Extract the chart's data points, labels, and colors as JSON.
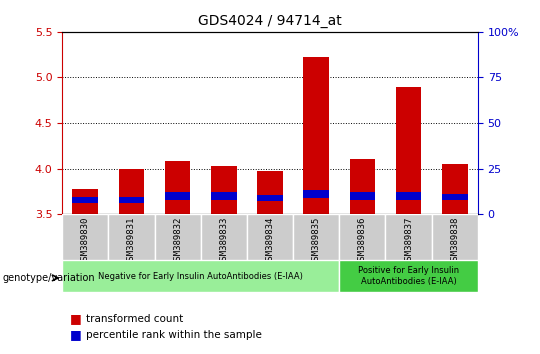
{
  "title": "GDS4024 / 94714_at",
  "samples": [
    "GSM389830",
    "GSM389831",
    "GSM389832",
    "GSM389833",
    "GSM389834",
    "GSM389835",
    "GSM389836",
    "GSM389837",
    "GSM389838"
  ],
  "transformed_counts": [
    3.78,
    4.0,
    4.08,
    4.03,
    3.97,
    5.22,
    4.1,
    4.9,
    4.05
  ],
  "percentile_values": [
    3.62,
    3.62,
    3.66,
    3.66,
    3.64,
    3.68,
    3.66,
    3.66,
    3.65
  ],
  "percentile_heights": [
    0.07,
    0.07,
    0.08,
    0.08,
    0.07,
    0.08,
    0.08,
    0.08,
    0.07
  ],
  "ymin": 3.5,
  "ymax": 5.5,
  "yticks": [
    3.5,
    4.0,
    4.5,
    5.0,
    5.5
  ],
  "right_yticks_vals": [
    0,
    25,
    50,
    75,
    100
  ],
  "right_ytick_labels": [
    "0",
    "25",
    "50",
    "75",
    "100%"
  ],
  "bar_color": "#cc0000",
  "blue_color": "#0000cc",
  "bar_bottom": 3.5,
  "groups": [
    {
      "label": "Negative for Early Insulin AutoAntibodies (E-IAA)",
      "start": 0,
      "end": 6,
      "color": "#99ee99"
    },
    {
      "label": "Positive for Early Insulin\nAutoAntibodies (E-IAA)",
      "start": 6,
      "end": 9,
      "color": "#44cc44"
    }
  ],
  "left_axis_color": "#cc0000",
  "right_axis_color": "#0000cc",
  "tick_label_bg": "#cccccc"
}
